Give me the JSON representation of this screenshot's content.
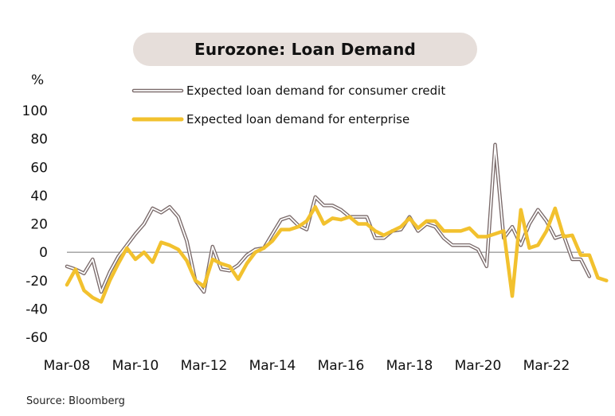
{
  "chart_data": {
    "type": "line",
    "title": "Eurozone: Loan Demand",
    "ylabel": "%",
    "xlabel": "",
    "ylim": [
      -60,
      100
    ],
    "yticks": [
      100,
      80,
      60,
      40,
      20,
      0,
      -20,
      -40,
      -60
    ],
    "xticks": [
      "Mar-08",
      "Mar-10",
      "Mar-12",
      "Mar-14",
      "Mar-16",
      "Mar-18",
      "Mar-20",
      "Mar-22"
    ],
    "legend_position": "top",
    "grid": false,
    "series": [
      {
        "name": "Expected loan demand for consumer credit",
        "style": "outlined",
        "color": "#7a6a6a",
        "values": [
          -10,
          -12,
          -15,
          -5,
          -28,
          -14,
          -3,
          5,
          13,
          20,
          31,
          28,
          32,
          25,
          8,
          -20,
          -28,
          4,
          -12,
          -13,
          -9,
          -2,
          2,
          3,
          13,
          23,
          25,
          19,
          16,
          39,
          33,
          33,
          30,
          25,
          25,
          25,
          10,
          10,
          15,
          16,
          25,
          15,
          20,
          18,
          10,
          5,
          5,
          5,
          2,
          -10,
          76,
          10,
          18,
          5,
          20,
          30,
          22,
          10,
          12,
          -5,
          -5,
          -17
        ]
      },
      {
        "name": "Expected loan demand for enterprise",
        "style": "solid",
        "color": "#f2c12e",
        "values": [
          -23,
          -12,
          -27,
          -32,
          -35,
          -20,
          -8,
          3,
          -5,
          0,
          -7,
          7,
          5,
          2,
          -6,
          -20,
          -24,
          -5,
          -8,
          -10,
          -19,
          -8,
          0,
          3,
          8,
          16,
          16,
          18,
          22,
          32,
          20,
          24,
          23,
          25,
          20,
          20,
          15,
          12,
          15,
          18,
          24,
          17,
          22,
          22,
          15,
          15,
          15,
          17,
          11,
          11,
          13,
          15,
          -31,
          30,
          3,
          5,
          15,
          31,
          11,
          12,
          -2,
          -2,
          -18,
          -20
        ]
      }
    ],
    "x_start": "Mar-08",
    "x_step": "quarter"
  },
  "source": "Source: Bloomberg"
}
